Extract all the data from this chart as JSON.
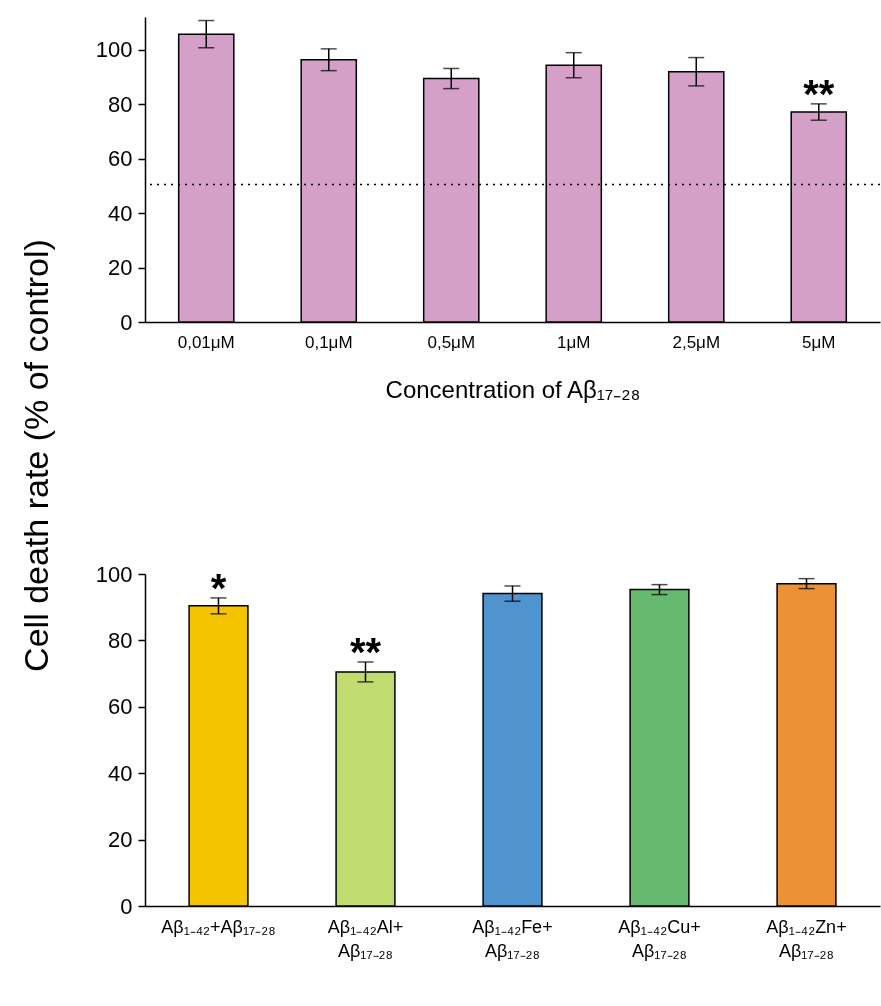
{
  "chart_data": [
    {
      "type": "bar",
      "ylabel": "Cell death rate (% of control)",
      "xlabel": "Concentration of Aβ₁₇₋₂₈",
      "categories": [
        "0,01μM",
        "0,1μM",
        "0,5μM",
        "1μM",
        "2,5μM",
        "5μM"
      ],
      "values": [
        105.7,
        96.3,
        89.4,
        94.3,
        91.9,
        77.1
      ],
      "errors": [
        5,
        4,
        3.7,
        4.6,
        5.2,
        3
      ],
      "color": "#d4a0c8",
      "ylim": [
        0,
        112
      ],
      "yticks": [
        0,
        20,
        40,
        60,
        80,
        100
      ],
      "ref_lines": [
        {
          "axis": "y",
          "value": 50.5,
          "color": "#000000",
          "line_style": "dotted"
        }
      ],
      "annotations": [
        {
          "text": "**",
          "x": "5μM",
          "y": 77.1
        }
      ]
    },
    {
      "type": "bar",
      "categories": [
        "Aβ₁₋₄₂+Aβ₁₇₋₂₈",
        "Aβ₁₋₄₂Al+ Aβ₁₇₋₂₈",
        "Aβ₁₋₄₂Fe+ Aβ₁₇₋₂₈",
        "Aβ₁₋₄₂Cu+ Aβ₁₇₋₂₈",
        "Aβ₁₋₄₂Zn+ Aβ₁₇₋₂₈"
      ],
      "values": [
        90.4,
        70.5,
        94.1,
        95.3,
        97.1
      ],
      "errors": [
        2.4,
        3,
        2.3,
        1.5,
        1.5
      ],
      "colors": [
        "#f5c400",
        "#c0dc70",
        "#4f94cf",
        "#66b96f",
        "#ea9235"
      ],
      "ylim": [
        0,
        100
      ],
      "yticks": [
        0,
        20,
        40,
        60,
        80,
        100
      ],
      "annotations": [
        {
          "text": "*",
          "x": "Aβ₁₋₄₂+Aβ₁₇₋₂₈",
          "y": 90.4
        },
        {
          "text": "**",
          "x": "Aβ₁₋₄₂Al+ Aβ₁₇₋₂₈",
          "y": 70.5
        }
      ]
    }
  ]
}
